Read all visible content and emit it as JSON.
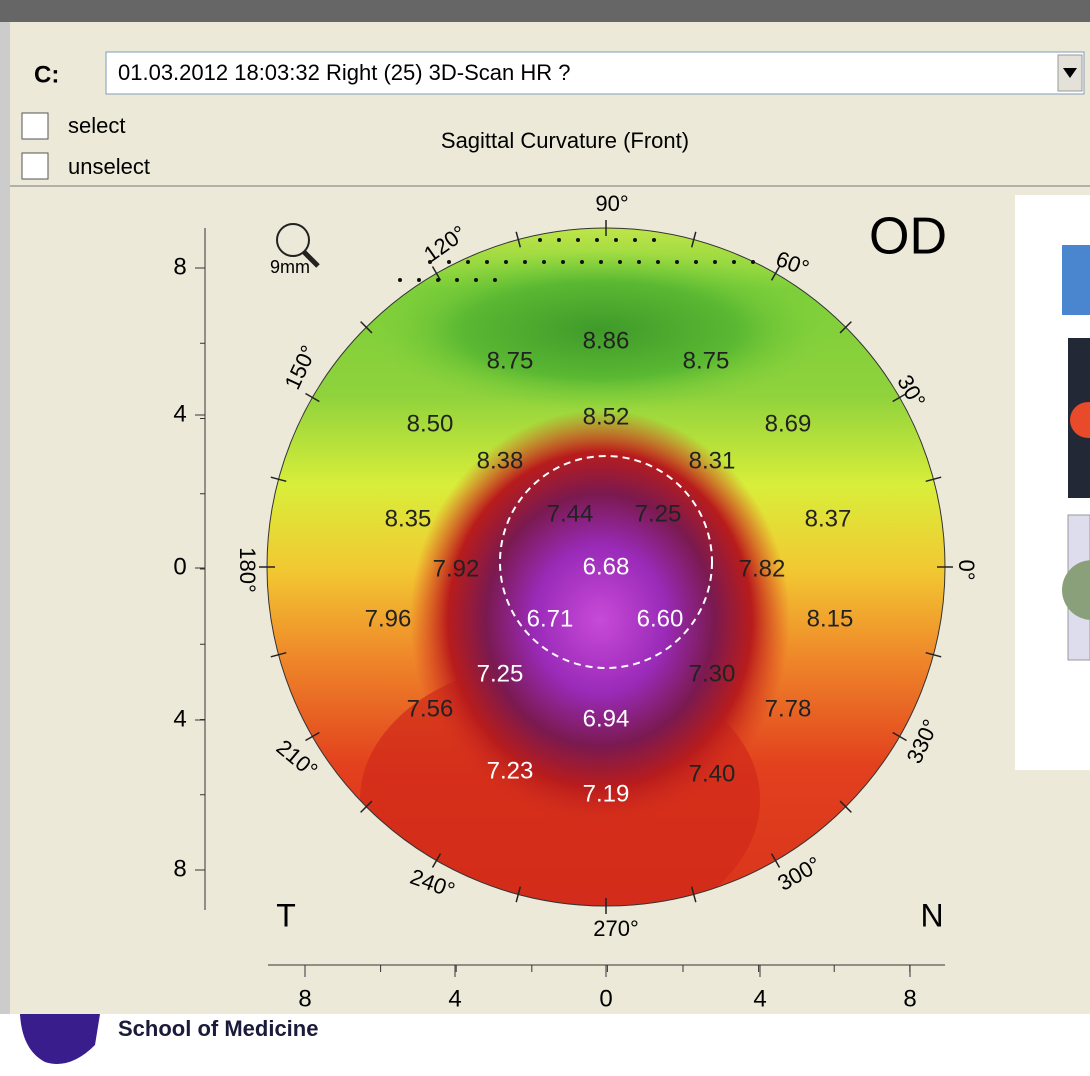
{
  "toolbar": {
    "label": "C:",
    "selection": "01.03.2012 18:03:32  Right  (25) 3D-Scan HR  ?"
  },
  "checkboxes": [
    "select",
    "unselect"
  ],
  "map": {
    "title": "Sagittal Curvature (Front)",
    "eye": "OD",
    "zoom": "9mm",
    "left_side": "T",
    "right_side": "N",
    "angles": [
      "90°",
      "120°",
      "60°",
      "150°",
      "30°",
      "180°",
      "0°",
      "210°",
      "330°",
      "240°",
      "300°",
      "270°"
    ],
    "values": [
      "8.86",
      "8.75",
      "8.75",
      "8.50",
      "8.52",
      "8.69",
      "8.38",
      "8.31",
      "8.35",
      "7.44",
      "7.25",
      "8.37",
      "7.92",
      "6.68",
      "7.82",
      "7.96",
      "6.71",
      "6.60",
      "8.15",
      "7.25",
      "7.30",
      "7.56",
      "7.78",
      "6.94",
      "7.23",
      "7.40",
      "7.19"
    ],
    "y_axis": [
      "8",
      "4",
      "0",
      "4",
      "8"
    ],
    "x_axis": [
      "8",
      "4",
      "0",
      "4",
      "8"
    ]
  },
  "footer": {
    "org": "School of Medicine"
  }
}
